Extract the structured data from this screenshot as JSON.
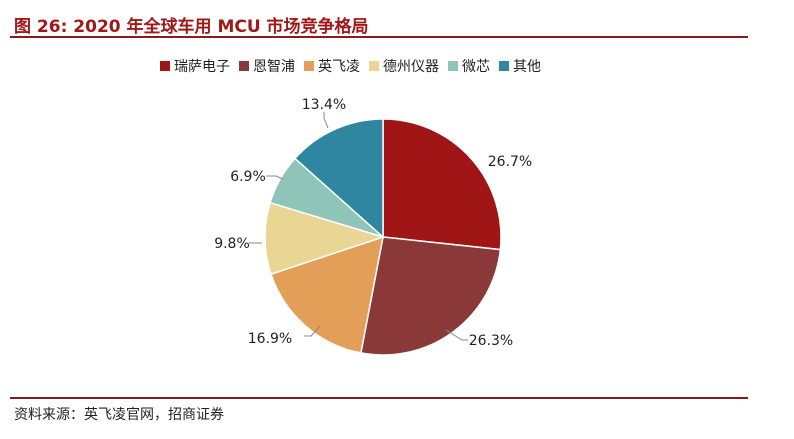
{
  "figure": {
    "title": "图 26:  2020 年全球车用 MCU 市场竞争格局",
    "source": "资料来源：英飞凌官网，招商证券"
  },
  "legend": {
    "position": "top"
  },
  "chart_data": {
    "type": "pie",
    "title": "",
    "categories": [
      "瑞萨电子",
      "恩智浦",
      "英飞凌",
      "德州仪器",
      "微芯",
      "其他"
    ],
    "values": [
      26.7,
      26.3,
      16.9,
      9.8,
      6.9,
      13.4
    ],
    "labels": [
      "26.7%",
      "26.3%",
      "16.9%",
      "9.8%",
      "6.9%",
      "13.4%"
    ],
    "colors": [
      "#a01515",
      "#8b3838",
      "#e39e58",
      "#e9d695",
      "#8ec5b8",
      "#2f86a0"
    ],
    "start_angle": "12 o'clock",
    "direction": "clockwise"
  }
}
